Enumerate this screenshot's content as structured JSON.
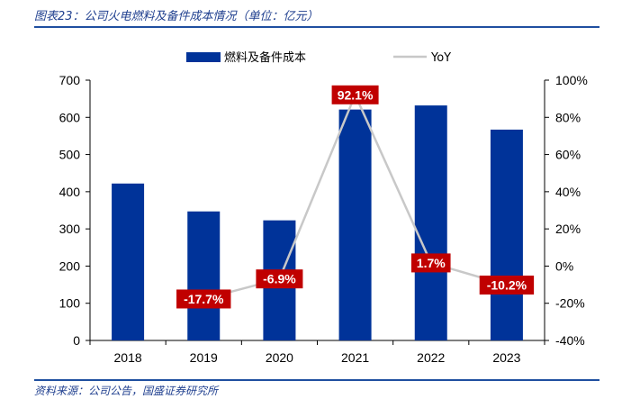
{
  "figure": {
    "title": "图表23：公司火电燃料及备件成本情况（单位：亿元）",
    "source": "资料来源：公司公告，国盛证券研究所"
  },
  "colors": {
    "bar": "#003399",
    "line": "#c8c8c8",
    "label_bg": "#c00000",
    "rule": "#1f4fa0"
  },
  "chart_data": {
    "type": "bar",
    "categories": [
      "2018",
      "2019",
      "2020",
      "2021",
      "2022",
      "2023"
    ],
    "series": [
      {
        "name": "燃料及备件成本",
        "type": "bar",
        "axis": "left",
        "values": [
          422,
          347,
          323,
          621,
          632,
          567
        ]
      },
      {
        "name": "YoY",
        "type": "line",
        "axis": "right",
        "values": [
          null,
          -17.7,
          -6.9,
          92.1,
          1.7,
          -10.2
        ],
        "labels": [
          "",
          "-17.7%",
          "-6.9%",
          "92.1%",
          "1.7%",
          "-10.2%"
        ]
      }
    ],
    "y_left": {
      "min": 0,
      "max": 700,
      "ticks": [
        "0",
        "100",
        "200",
        "300",
        "400",
        "500",
        "600",
        "700"
      ]
    },
    "y_right": {
      "min": -40,
      "max": 100,
      "ticks": [
        "-40%",
        "-20%",
        "0%",
        "20%",
        "40%",
        "60%",
        "80%",
        "100%"
      ]
    },
    "legend": {
      "position": "top-center"
    },
    "grid": false
  }
}
